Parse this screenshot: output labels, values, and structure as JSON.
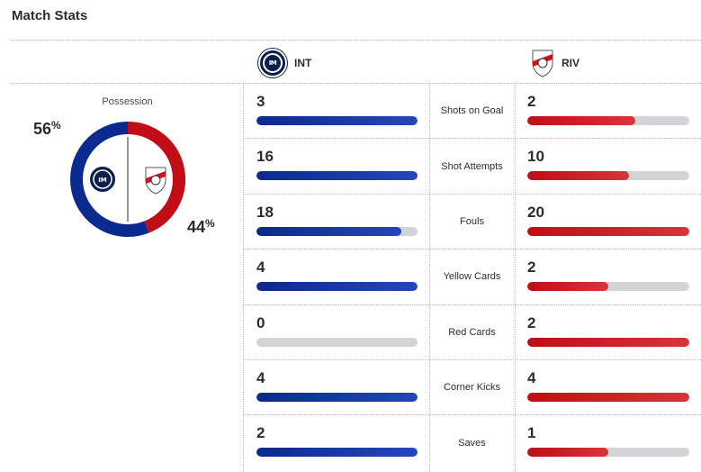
{
  "title": "Match Stats",
  "teams": {
    "home": {
      "abbr": "INT",
      "color": "#0b2a8f"
    },
    "away": {
      "abbr": "RIV",
      "color": "#c00d16"
    }
  },
  "possession": {
    "label": "Possession",
    "home_pct": 56,
    "away_pct": 44,
    "home_display": "56",
    "away_display": "44",
    "unit": "%"
  },
  "stats": [
    {
      "label": "Shots on Goal",
      "home": "3",
      "away": "2",
      "home_fill": 1.0,
      "away_fill": 0.667
    },
    {
      "label": "Shot Attempts",
      "home": "16",
      "away": "10",
      "home_fill": 1.0,
      "away_fill": 0.625
    },
    {
      "label": "Fouls",
      "home": "18",
      "away": "20",
      "home_fill": 0.9,
      "away_fill": 1.0
    },
    {
      "label": "Yellow Cards",
      "home": "4",
      "away": "2",
      "home_fill": 1.0,
      "away_fill": 0.5
    },
    {
      "label": "Red Cards",
      "home": "0",
      "away": "2",
      "home_fill": 0.0,
      "away_fill": 1.0
    },
    {
      "label": "Corner Kicks",
      "home": "4",
      "away": "4",
      "home_fill": 1.0,
      "away_fill": 1.0
    },
    {
      "label": "Saves",
      "home": "2",
      "away": "1",
      "home_fill": 1.0,
      "away_fill": 0.5
    }
  ]
}
